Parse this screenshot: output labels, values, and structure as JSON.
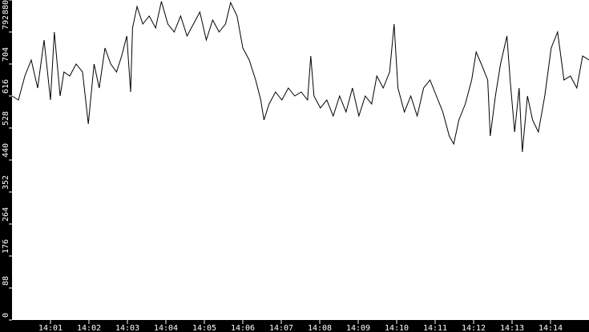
{
  "chart_data": {
    "type": "line",
    "title": "",
    "xlabel": "",
    "ylabel": "",
    "xlim": [
      "14:00:00",
      "14:15:00"
    ],
    "ylim": [
      0,
      880
    ],
    "grid": false,
    "colors": {
      "background": "#000000",
      "plot_area": "#ffffff",
      "line": "#000000",
      "axis_text": "#ffffff"
    },
    "x_ticks": [
      "14:01",
      "14:02",
      "14:03",
      "14:04",
      "14:05",
      "14:06",
      "14:07",
      "14:08",
      "14:09",
      "14:10",
      "14:11",
      "14:12",
      "14:13",
      "14:14"
    ],
    "y_ticks": [
      "0",
      "88",
      "176",
      "264",
      "352",
      "440",
      "528",
      "616",
      "704",
      "792",
      "880"
    ],
    "series": [
      {
        "x": [
          "14:00:00",
          "14:00:10",
          "14:00:20",
          "14:00:30",
          "14:00:40",
          "14:00:50",
          "14:01:00",
          "14:01:06",
          "14:01:15",
          "14:01:21",
          "14:01:30",
          "14:01:40",
          "14:01:50",
          "14:01:59",
          "14:02:08",
          "14:02:16",
          "14:02:25",
          "14:02:34",
          "14:02:43",
          "14:02:51",
          "14:02:59",
          "14:03:05",
          "14:03:08",
          "14:03:15",
          "14:03:24",
          "14:03:34",
          "14:03:44",
          "14:03:53",
          "14:04:03",
          "14:04:13",
          "14:04:23",
          "14:04:33",
          "14:04:43",
          "14:04:53",
          "14:05:03",
          "14:05:13",
          "14:05:23",
          "14:05:33",
          "14:05:41",
          "14:05:51",
          "14:06:00",
          "14:06:10",
          "14:06:20",
          "14:06:28",
          "14:06:33",
          "14:06:41",
          "14:06:51",
          "14:07:01",
          "14:07:11",
          "14:07:21",
          "14:07:31",
          "14:07:41",
          "14:07:46",
          "14:07:51",
          "14:08:01",
          "14:08:11",
          "14:08:21",
          "14:08:31",
          "14:08:41",
          "14:08:51",
          "14:09:01",
          "14:09:11",
          "14:09:21",
          "14:09:29",
          "14:09:39",
          "14:09:49",
          "14:09:56",
          "14:10:02",
          "14:10:12",
          "14:10:22",
          "14:10:32",
          "14:10:42",
          "14:10:52",
          "14:11:02",
          "14:11:12",
          "14:11:22",
          "14:11:29",
          "14:11:37",
          "14:11:47",
          "14:11:57",
          "14:12:04",
          "14:12:12",
          "14:12:22",
          "14:12:26",
          "14:12:34",
          "14:12:42",
          "14:12:52",
          "14:12:57",
          "14:13:04",
          "14:13:11",
          "14:13:16",
          "14:13:24",
          "14:13:32",
          "14:13:41",
          "14:13:51",
          "14:14:01",
          "14:14:11",
          "14:14:21",
          "14:14:31",
          "14:14:41",
          "14:14:50",
          "14:15:00"
        ],
        "y": [
          616,
          605,
          671,
          715,
          638,
          770,
          605,
          792,
          616,
          682,
          671,
          704,
          682,
          539,
          704,
          638,
          748,
          704,
          682,
          726,
          781,
          627,
          803,
          862,
          814,
          836,
          803,
          876,
          814,
          792,
          836,
          781,
          814,
          847,
          770,
          825,
          792,
          814,
          873,
          836,
          748,
          715,
          660,
          605,
          550,
          594,
          627,
          605,
          638,
          616,
          627,
          605,
          726,
          616,
          583,
          605,
          561,
          616,
          572,
          638,
          561,
          616,
          594,
          671,
          638,
          682,
          814,
          638,
          572,
          616,
          561,
          638,
          660,
          616,
          572,
          506,
          484,
          550,
          594,
          660,
          737,
          704,
          660,
          506,
          616,
          704,
          781,
          660,
          517,
          638,
          462,
          616,
          550,
          517,
          616,
          748,
          792,
          660,
          671,
          638,
          726,
          715
        ]
      }
    ]
  }
}
